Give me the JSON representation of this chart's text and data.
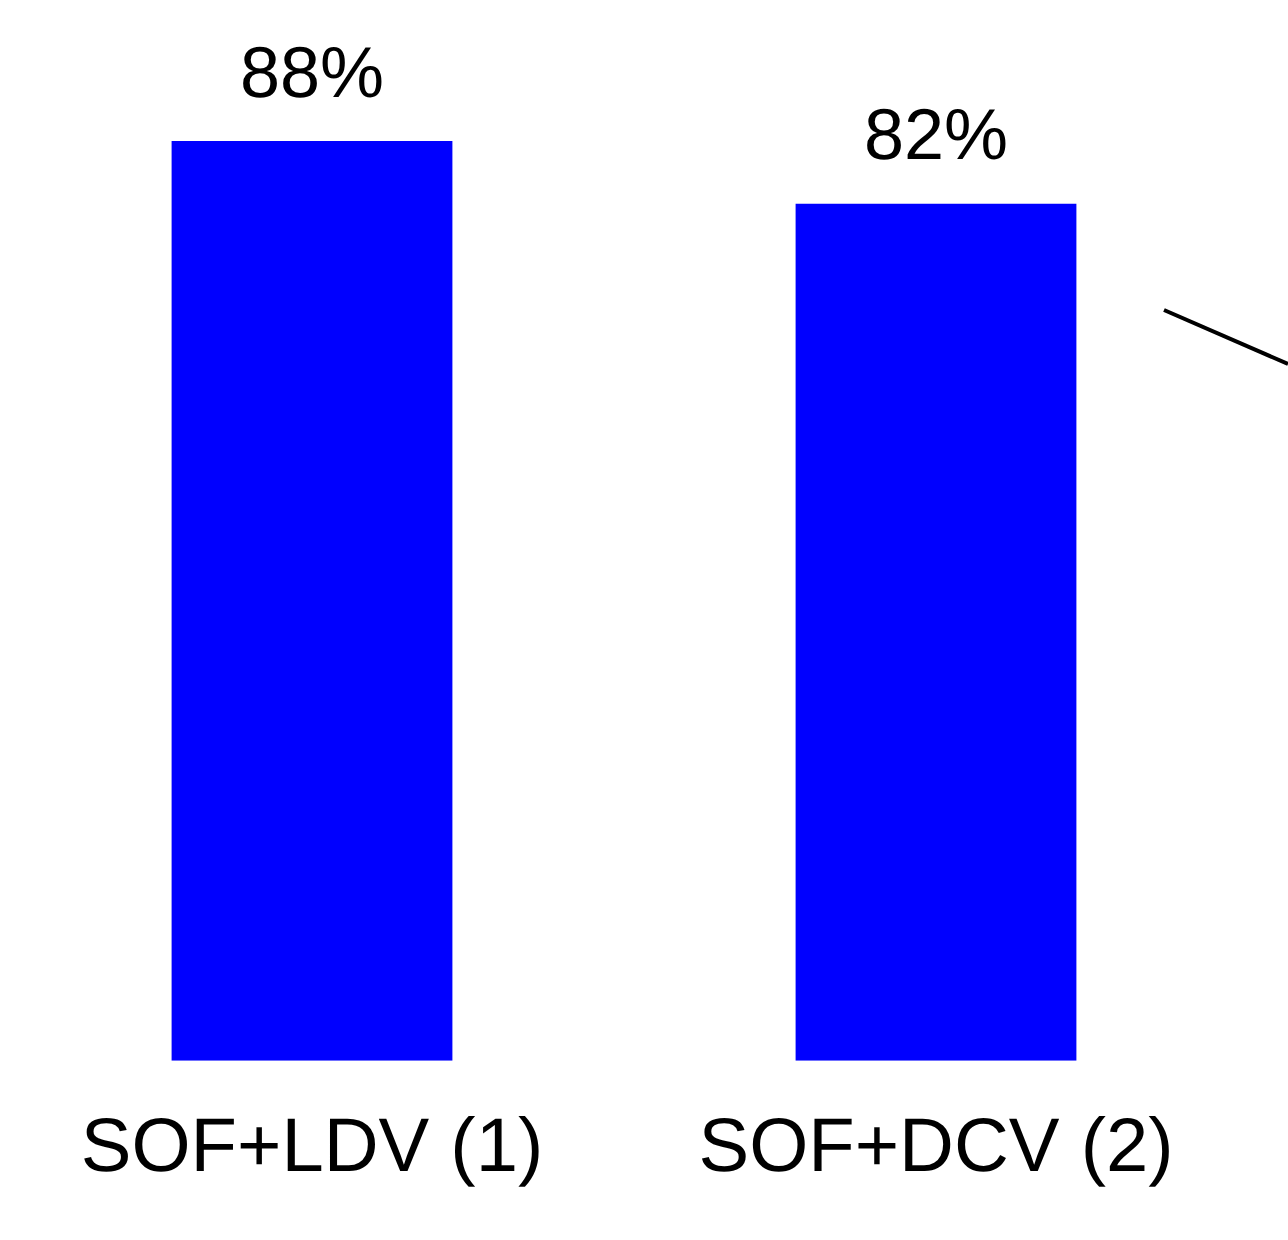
{
  "chart_data": {
    "type": "bar",
    "categories": [
      "SOF+LDV (1)",
      "SOF+DCV (2)"
    ],
    "values": [
      88,
      82
    ],
    "color": "#0000ff",
    "value_labels": [
      "88%",
      "82%"
    ],
    "tick_labels": "x",
    "grid": false,
    "legend": false
  }
}
